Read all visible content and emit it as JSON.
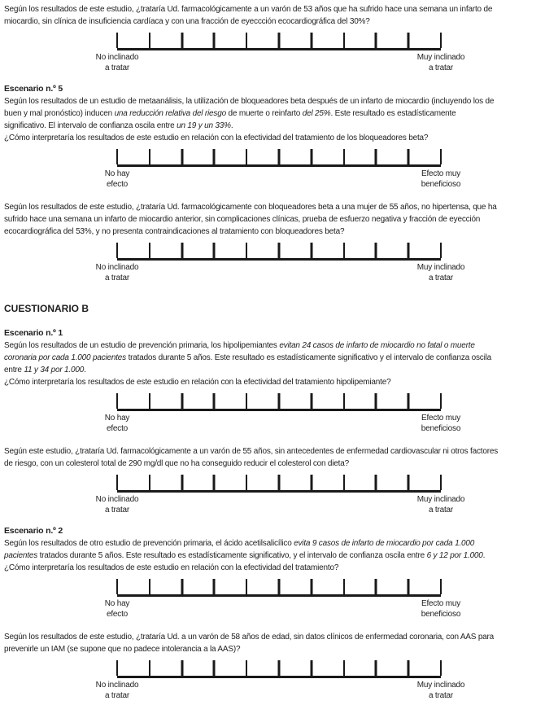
{
  "colors": {
    "text": "#1e1e1e",
    "background": "#ffffff",
    "line": "#1a1a1a"
  },
  "scale": {
    "tick_count": 11,
    "treat": {
      "left1": "No inclinado",
      "left2": "a tratar",
      "right1": "Muy inclinado",
      "right2": "a tratar"
    },
    "effect": {
      "left1": "No hay",
      "left2": "efecto",
      "right1": "Efecto muy",
      "right2": "beneficioso"
    }
  },
  "content": {
    "intro_q": {
      "lines": [
        [
          {
            "t": "Según los resultados de este estudio, ¿trataría Ud. farmacológicamente a un varón de 53 años que ha sufrido hace una semana un infarto de",
            "i": false
          }
        ],
        [
          {
            "t": "miocardio, sin clínica de insuficiencia cardíaca y con una fracción de eyeccción ecocardiográfica del 30%?",
            "i": false
          }
        ]
      ]
    },
    "scenario5": {
      "heading": "Escenario n.º 5",
      "body": {
        "lines": [
          [
            {
              "t": "Según los resultados de un estudio de metaanálisis, la utilización de bloqueadores beta después de un infarto de miocardio (incluyendo los de",
              "i": false
            }
          ],
          [
            {
              "t": "buen y mal pronóstico) inducen ",
              "i": false
            },
            {
              "t": "una reducción relativa del riesgo",
              "i": true
            },
            {
              "t": " de muerte o reinfarto ",
              "i": false
            },
            {
              "t": "del 25%",
              "i": true
            },
            {
              "t": ". Este resultado es estadísticamente",
              "i": false
            }
          ],
          [
            {
              "t": "significativo. El intervalo de confianza oscila entre ",
              "i": false
            },
            {
              "t": "un 19 y un 33%",
              "i": true
            },
            {
              "t": ".",
              "i": false
            }
          ],
          [
            {
              "t": "¿Cómo interpretaría los resultados de este estudio en relación con la efectividad del tratamiento de los bloqueadores beta?",
              "i": false
            }
          ]
        ]
      },
      "followup": {
        "lines": [
          [
            {
              "t": "Según los resultados de este estudio, ¿trataría Ud. farmacológicamente con bloqueadores beta a una mujer de 55 años, no hipertensa, que ha",
              "i": false
            }
          ],
          [
            {
              "t": "sufrido hace una semana un infarto de miocardio anterior, sin complicaciones clínicas, prueba de esfuerzo negativa y fracción de eyección",
              "i": false
            }
          ],
          [
            {
              "t": "ecocardiográfica del 53%, y no presenta contraindicaciones al tratamiento con bloqueadores beta?",
              "i": false
            }
          ]
        ]
      }
    },
    "section_b_title": "CUESTIONARIO B",
    "scenario1": {
      "heading": "Escenario n.º 1",
      "body": {
        "lines": [
          [
            {
              "t": "Según los resultados de un estudio de prevención primaria, los hipolipemiantes ",
              "i": false
            },
            {
              "t": "evitan 24 casos de infarto de miocardio no fatal o muerte",
              "i": true
            }
          ],
          [
            {
              "t": "coronaria por cada 1.000 pacientes",
              "i": true
            },
            {
              "t": " tratados durante 5 años. Este resultado es estadísticamente significativo y el intervalo de confianza oscila",
              "i": false
            }
          ],
          [
            {
              "t": "entre ",
              "i": false
            },
            {
              "t": "11 y 34 por 1.000",
              "i": true
            },
            {
              "t": ".",
              "i": false
            }
          ],
          [
            {
              "t": "¿Cómo interpretaría los resultados de este estudio en relación con la efectividad del tratamiento hipolipemiante?",
              "i": false
            }
          ]
        ]
      },
      "followup": {
        "lines": [
          [
            {
              "t": "Según este estudio, ¿trataría Ud. farmacológicamente a un varón de 55 años, sin antecedentes de enfermedad cardiovascular ni otros factores",
              "i": false
            }
          ],
          [
            {
              "t": "de riesgo, con un colesterol total de 290 mg/dl que no ha conseguido reducir el colesterol con dieta?",
              "i": false
            }
          ]
        ]
      }
    },
    "scenario2": {
      "heading": "Escenario n.º 2",
      "body": {
        "lines": [
          [
            {
              "t": "Según los resultados de otro estudio de prevención primaria, el ácido acetilsalicílico ",
              "i": false
            },
            {
              "t": "evita 9 casos de infarto de miocardio por cada 1.000",
              "i": true
            }
          ],
          [
            {
              "t": "pacientes",
              "i": true
            },
            {
              "t": " tratados durante 5 años. Este resultado es estadísticamente significativo, y el intervalo de confianza oscila entre ",
              "i": false
            },
            {
              "t": "6 y 12 por 1.000",
              "i": true
            },
            {
              "t": ".",
              "i": false
            }
          ],
          [
            {
              "t": "¿Cómo interpretaría los resultados de este estudio en relación con la efectividad del tratamiento?",
              "i": false
            }
          ]
        ]
      },
      "followup": {
        "lines": [
          [
            {
              "t": "Según los resultados de este estudio, ¿trataría Ud. a un varón de 58 años de edad, sin datos clínicos de enfermedad coronaria, con AAS para",
              "i": false
            }
          ],
          [
            {
              "t": "prevenirle un IAM (se supone que no padece intolerancia a la AAS)?",
              "i": false
            }
          ]
        ]
      }
    }
  }
}
